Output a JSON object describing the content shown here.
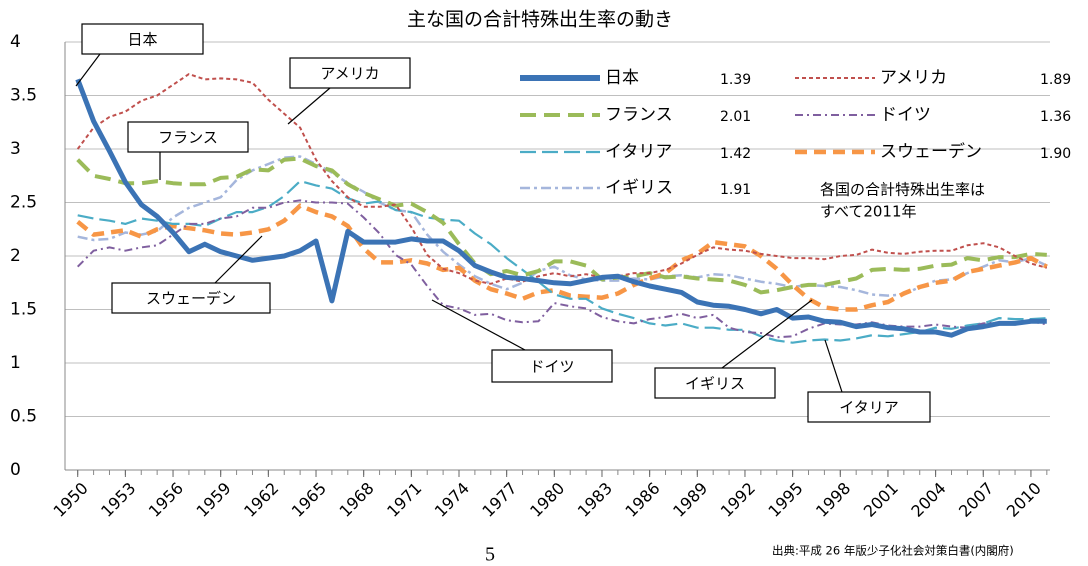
{
  "chart_data": {
    "type": "line",
    "title": "主な国の合計特殊出生率の動き",
    "x": [
      1950,
      1951,
      1952,
      1953,
      1954,
      1955,
      1956,
      1957,
      1958,
      1959,
      1960,
      1961,
      1962,
      1963,
      1964,
      1965,
      1966,
      1967,
      1968,
      1969,
      1970,
      1971,
      1972,
      1973,
      1974,
      1975,
      1976,
      1977,
      1978,
      1979,
      1980,
      1981,
      1982,
      1983,
      1984,
      1985,
      1986,
      1987,
      1988,
      1989,
      1990,
      1991,
      1992,
      1993,
      1994,
      1995,
      1996,
      1997,
      1998,
      1999,
      2000,
      2001,
      2002,
      2003,
      2004,
      2005,
      2006,
      2007,
      2008,
      2009,
      2010,
      2011
    ],
    "xlim": [
      1949.2,
      2011.2
    ],
    "xticks": [
      1950,
      1953,
      1956,
      1959,
      1962,
      1965,
      1968,
      1971,
      1974,
      1977,
      1980,
      1983,
      1986,
      1989,
      1992,
      1995,
      1998,
      2001,
      2004,
      2007,
      2010
    ],
    "ylim": [
      0,
      4
    ],
    "yticks": [
      0,
      0.5,
      1,
      1.5,
      2,
      2.5,
      3,
      3.5,
      4
    ],
    "grid": true,
    "series": [
      {
        "name": "日本",
        "legend_value": "1.39",
        "color": "#3b73b5",
        "values": [
          3.65,
          3.26,
          2.98,
          2.69,
          2.48,
          2.37,
          2.22,
          2.04,
          2.11,
          2.04,
          2.0,
          1.96,
          1.98,
          2.0,
          2.05,
          2.14,
          1.58,
          2.23,
          2.13,
          2.13,
          2.13,
          2.16,
          2.14,
          2.14,
          2.05,
          1.91,
          1.85,
          1.8,
          1.79,
          1.77,
          1.75,
          1.74,
          1.77,
          1.8,
          1.81,
          1.76,
          1.72,
          1.69,
          1.66,
          1.57,
          1.54,
          1.53,
          1.5,
          1.46,
          1.5,
          1.42,
          1.43,
          1.39,
          1.38,
          1.34,
          1.36,
          1.33,
          1.32,
          1.29,
          1.29,
          1.26,
          1.32,
          1.34,
          1.37,
          1.37,
          1.39,
          1.39
        ]
      },
      {
        "name": "アメリカ",
        "legend_value": "1.89",
        "color": "#c0504d",
        "values": [
          3.0,
          3.2,
          3.3,
          3.35,
          3.45,
          3.5,
          3.6,
          3.7,
          3.65,
          3.66,
          3.65,
          3.62,
          3.46,
          3.33,
          3.2,
          2.9,
          2.7,
          2.55,
          2.46,
          2.46,
          2.48,
          2.27,
          2.01,
          1.88,
          1.84,
          1.77,
          1.74,
          1.79,
          1.76,
          1.81,
          1.84,
          1.81,
          1.83,
          1.8,
          1.81,
          1.84,
          1.84,
          1.87,
          1.93,
          2.01,
          2.08,
          2.06,
          2.05,
          2.02,
          2.0,
          1.98,
          1.98,
          1.97,
          2.0,
          2.01,
          2.06,
          2.03,
          2.02,
          2.04,
          2.05,
          2.05,
          2.1,
          2.12,
          2.08,
          2.0,
          1.93,
          1.89
        ]
      },
      {
        "name": "フランス",
        "legend_value": "2.01",
        "color": "#9bbb59",
        "values": [
          2.9,
          2.75,
          2.72,
          2.68,
          2.68,
          2.7,
          2.68,
          2.67,
          2.67,
          2.73,
          2.74,
          2.81,
          2.8,
          2.9,
          2.91,
          2.84,
          2.8,
          2.67,
          2.59,
          2.53,
          2.47,
          2.49,
          2.41,
          2.31,
          2.11,
          1.93,
          1.83,
          1.86,
          1.82,
          1.86,
          1.95,
          1.95,
          1.91,
          1.78,
          1.8,
          1.81,
          1.84,
          1.8,
          1.81,
          1.79,
          1.78,
          1.77,
          1.73,
          1.66,
          1.68,
          1.71,
          1.73,
          1.73,
          1.76,
          1.79,
          1.87,
          1.88,
          1.87,
          1.88,
          1.91,
          1.92,
          1.98,
          1.96,
          1.99,
          1.99,
          2.02,
          2.01
        ]
      },
      {
        "name": "ドイツ",
        "legend_value": "1.36",
        "color": "#7f5f9f",
        "values": [
          1.9,
          2.05,
          2.08,
          2.05,
          2.08,
          2.1,
          2.2,
          2.3,
          2.3,
          2.35,
          2.37,
          2.45,
          2.45,
          2.5,
          2.52,
          2.5,
          2.5,
          2.49,
          2.36,
          2.21,
          2.01,
          1.92,
          1.72,
          1.54,
          1.51,
          1.45,
          1.46,
          1.4,
          1.38,
          1.39,
          1.56,
          1.53,
          1.51,
          1.43,
          1.39,
          1.37,
          1.41,
          1.43,
          1.46,
          1.42,
          1.45,
          1.33,
          1.29,
          1.28,
          1.24,
          1.25,
          1.32,
          1.37,
          1.36,
          1.36,
          1.38,
          1.35,
          1.34,
          1.34,
          1.36,
          1.34,
          1.33,
          1.37,
          1.38,
          1.36,
          1.39,
          1.36
        ]
      },
      {
        "name": "イタリア",
        "legend_value": "1.42",
        "color": "#4bacc6",
        "values": [
          2.38,
          2.35,
          2.33,
          2.3,
          2.35,
          2.33,
          2.3,
          2.3,
          2.28,
          2.35,
          2.41,
          2.41,
          2.46,
          2.56,
          2.7,
          2.66,
          2.63,
          2.54,
          2.49,
          2.51,
          2.43,
          2.41,
          2.36,
          2.34,
          2.33,
          2.21,
          2.11,
          1.98,
          1.87,
          1.76,
          1.64,
          1.6,
          1.6,
          1.51,
          1.46,
          1.42,
          1.37,
          1.35,
          1.37,
          1.33,
          1.33,
          1.31,
          1.31,
          1.25,
          1.21,
          1.19,
          1.21,
          1.22,
          1.21,
          1.23,
          1.26,
          1.25,
          1.27,
          1.29,
          1.33,
          1.32,
          1.35,
          1.37,
          1.42,
          1.41,
          1.41,
          1.42
        ]
      },
      {
        "name": "スウェーデン",
        "legend_value": "1.90",
        "color": "#f79646",
        "values": [
          2.32,
          2.2,
          2.22,
          2.24,
          2.18,
          2.25,
          2.28,
          2.26,
          2.24,
          2.21,
          2.2,
          2.22,
          2.25,
          2.33,
          2.47,
          2.41,
          2.37,
          2.28,
          2.07,
          1.94,
          1.94,
          1.96,
          1.93,
          1.87,
          1.89,
          1.77,
          1.69,
          1.65,
          1.6,
          1.66,
          1.68,
          1.63,
          1.62,
          1.61,
          1.65,
          1.73,
          1.79,
          1.84,
          1.96,
          2.02,
          2.13,
          2.11,
          2.09,
          2.0,
          1.88,
          1.73,
          1.6,
          1.52,
          1.5,
          1.5,
          1.54,
          1.57,
          1.65,
          1.71,
          1.75,
          1.77,
          1.85,
          1.88,
          1.91,
          1.94,
          1.98,
          1.9
        ]
      },
      {
        "name": "イギリス",
        "legend_value": "1.91",
        "color": "#a5b6dc",
        "values": [
          2.18,
          2.15,
          2.16,
          2.22,
          2.2,
          2.23,
          2.36,
          2.45,
          2.5,
          2.55,
          2.71,
          2.8,
          2.86,
          2.92,
          2.93,
          2.86,
          2.78,
          2.68,
          2.6,
          2.5,
          2.43,
          2.41,
          2.2,
          2.04,
          1.92,
          1.81,
          1.74,
          1.69,
          1.75,
          1.86,
          1.9,
          1.82,
          1.78,
          1.77,
          1.77,
          1.79,
          1.78,
          1.81,
          1.82,
          1.8,
          1.83,
          1.82,
          1.79,
          1.76,
          1.74,
          1.71,
          1.73,
          1.72,
          1.71,
          1.68,
          1.64,
          1.63,
          1.64,
          1.71,
          1.77,
          1.78,
          1.84,
          1.9,
          1.96,
          1.94,
          1.98,
          1.91
        ]
      }
    ],
    "annotations": [
      "日本",
      "アメリカ",
      "フランス",
      "スウェーデン",
      "ドイツ",
      "イギリス",
      "イタリア"
    ],
    "note": [
      "各国の合計特殊出生率は",
      "すべて2011年"
    ],
    "source": "出典:平成 26 年版少子化社会対策白書(内閣府)",
    "page_number": "5"
  }
}
